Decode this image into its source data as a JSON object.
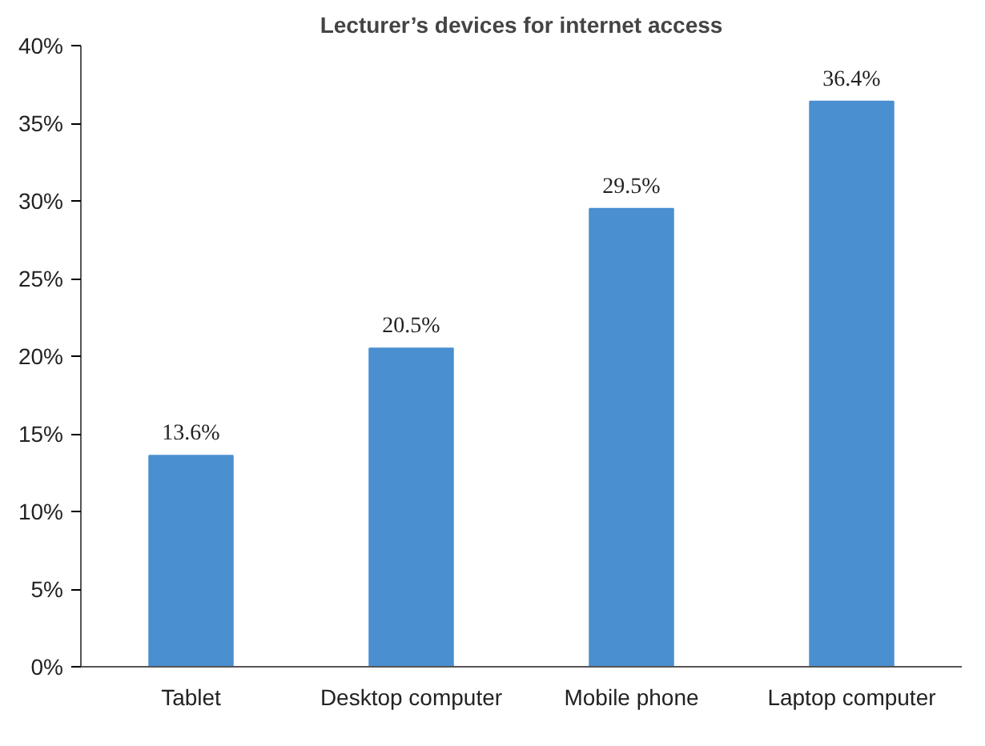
{
  "chart_data": {
    "type": "bar",
    "title": "Lecturer’s devices for internet access",
    "categories": [
      "Tablet",
      "Desktop computer",
      "Mobile phone",
      "Laptop computer"
    ],
    "values": [
      13.6,
      20.5,
      29.5,
      36.4
    ],
    "color": "#4a8fd0",
    "value_labels": [
      "13.6%",
      "20.5%",
      "29.5%",
      "36.4%"
    ],
    "ylim": [
      0,
      40
    ],
    "yticks": [
      {
        "value": 0,
        "label": "0%"
      },
      {
        "value": 5,
        "label": "5%"
      },
      {
        "value": 10,
        "label": "10%"
      },
      {
        "value": 15,
        "label": "15%"
      },
      {
        "value": 20,
        "label": "20%"
      },
      {
        "value": 25,
        "label": "25%"
      },
      {
        "value": 30,
        "label": "30%"
      },
      {
        "value": 35,
        "label": "35%"
      },
      {
        "value": 40,
        "label": "40%"
      }
    ],
    "grid": false
  }
}
